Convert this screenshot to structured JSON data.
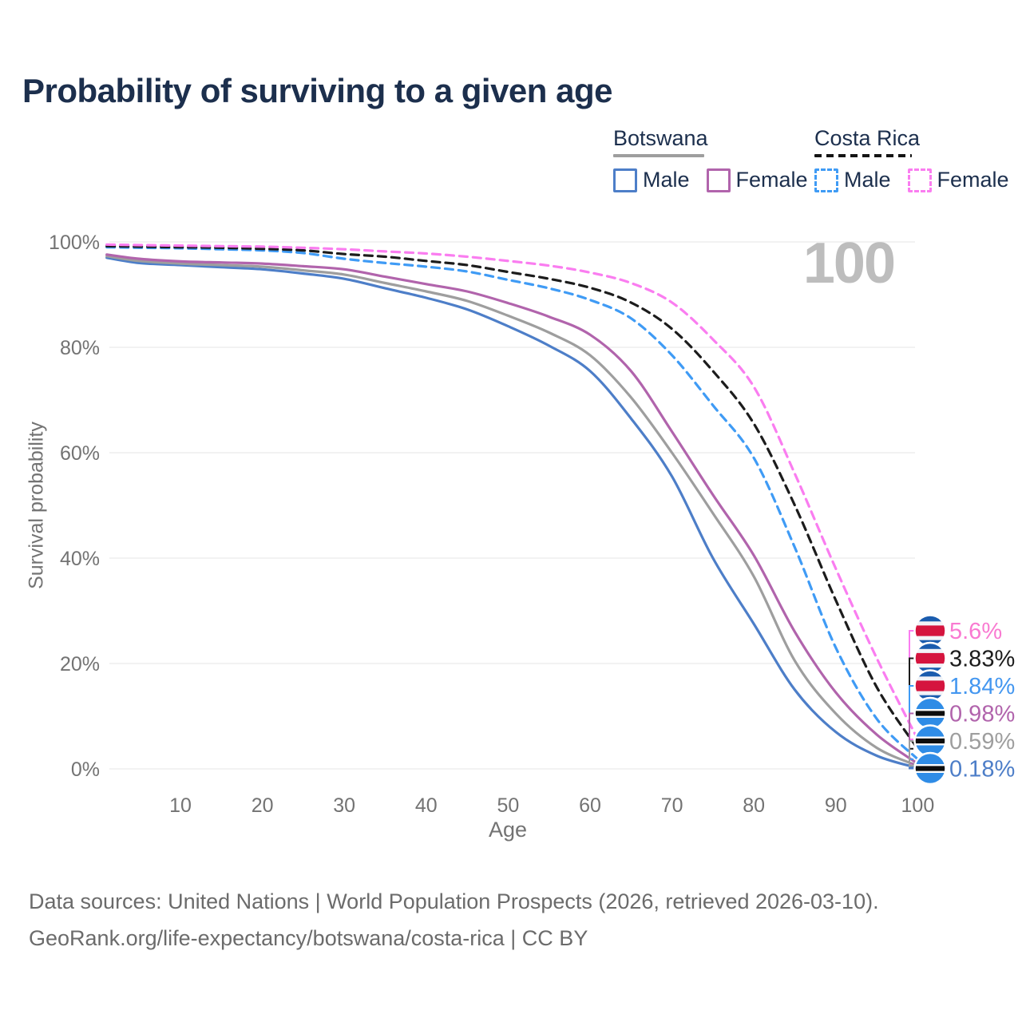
{
  "page": {
    "title": "Probability of surviving to a given age"
  },
  "watermark": "100",
  "legend": {
    "groups": [
      {
        "name": "Botswana",
        "line_style": "solid",
        "line_color": "#9e9e9e",
        "items": [
          {
            "label": "Male",
            "color": "#4d7ec8",
            "dashed": false
          },
          {
            "label": "Female",
            "color": "#b164ac",
            "dashed": false
          }
        ]
      },
      {
        "name": "Costa Rica",
        "line_style": "dashed",
        "line_color": "#141414",
        "items": [
          {
            "label": "Male",
            "color": "#3f9bf5",
            "dashed": true
          },
          {
            "label": "Female",
            "color": "#fa7df0",
            "dashed": true
          }
        ]
      }
    ]
  },
  "chart_data": {
    "type": "line",
    "title": "Probability of surviving to a given age",
    "xlabel": "Age",
    "ylabel": "Survival probability",
    "xlim": [
      1,
      100
    ],
    "ylim": [
      0,
      100
    ],
    "grid": "horizontal",
    "legend_position": "top-right",
    "x_ticks": [
      10,
      20,
      30,
      40,
      50,
      60,
      70,
      80,
      90,
      100
    ],
    "y_ticks": [
      {
        "value": 0,
        "label": "0%"
      },
      {
        "value": 20,
        "label": "20%"
      },
      {
        "value": 40,
        "label": "40%"
      },
      {
        "value": 60,
        "label": "60%"
      },
      {
        "value": 80,
        "label": "80%"
      },
      {
        "value": 100,
        "label": "100%"
      }
    ],
    "x": [
      1,
      5,
      10,
      15,
      20,
      25,
      30,
      35,
      40,
      45,
      50,
      55,
      60,
      65,
      70,
      75,
      80,
      85,
      90,
      95,
      100
    ],
    "series": [
      {
        "name": "Botswana Male",
        "country": "Botswana",
        "sex": "male",
        "color": "#4d7ec8",
        "label_color": "#4d7ec8",
        "dashed": false,
        "flag": "botswana",
        "end_label": "0.18%",
        "values": [
          97.0,
          96.0,
          95.6,
          95.2,
          94.8,
          94.0,
          93.0,
          91.2,
          89.4,
          87.2,
          84.0,
          80.3,
          75.5,
          66.5,
          55.5,
          40.0,
          27.5,
          15.0,
          7.0,
          2.5,
          0.18
        ]
      },
      {
        "name": "Botswana (both sexes)",
        "country": "Botswana",
        "sex": "total",
        "color": "#9e9e9e",
        "label_color": "#9e9e9e",
        "dashed": false,
        "flag": "botswana",
        "end_label": "0.59%",
        "values": [
          97.3,
          96.4,
          95.9,
          95.6,
          95.3,
          94.6,
          93.8,
          92.2,
          90.6,
          88.8,
          86.0,
          82.8,
          78.5,
          70.5,
          60.0,
          48.5,
          36.5,
          20.5,
          10.5,
          4.0,
          0.59
        ]
      },
      {
        "name": "Botswana Female",
        "country": "Botswana",
        "sex": "female",
        "color": "#b164ac",
        "label_color": "#b164ac",
        "dashed": false,
        "flag": "botswana",
        "end_label": "0.98%",
        "values": [
          97.6,
          96.8,
          96.3,
          96.1,
          95.9,
          95.4,
          94.8,
          93.4,
          92.0,
          90.6,
          88.4,
          85.8,
          82.4,
          75.5,
          64.0,
          52.0,
          40.5,
          26.0,
          14.5,
          6.5,
          0.98
        ]
      },
      {
        "name": "Costa Rica Male",
        "country": "Costa Rica",
        "sex": "male",
        "color": "#3f9bf5",
        "label_color": "#4497f0",
        "dashed": true,
        "flag": "costa-rica",
        "end_label": "1.84%",
        "values": [
          99.0,
          98.9,
          98.8,
          98.6,
          98.4,
          97.9,
          96.8,
          96.0,
          95.3,
          94.4,
          92.8,
          91.2,
          89.0,
          85.5,
          78.5,
          69.0,
          59.0,
          42.0,
          23.0,
          9.5,
          1.84
        ]
      },
      {
        "name": "Costa Rica (both sexes)",
        "country": "Costa Rica",
        "sex": "total",
        "color": "#1c1c1c",
        "label_color": "#1c1c1c",
        "dashed": true,
        "flag": "costa-rica",
        "end_label": "3.83%",
        "values": [
          99.2,
          99.1,
          99.0,
          98.9,
          98.7,
          98.4,
          97.7,
          97.2,
          96.4,
          95.6,
          94.3,
          93.0,
          91.3,
          88.5,
          83.5,
          75.5,
          65.5,
          50.0,
          32.0,
          15.5,
          3.83
        ]
      },
      {
        "name": "Costa Rica Female",
        "country": "Costa Rica",
        "sex": "female",
        "color": "#fa7df0",
        "label_color": "#f97ad1",
        "dashed": true,
        "flag": "costa-rica",
        "end_label": "5.6%",
        "values": [
          99.5,
          99.4,
          99.3,
          99.2,
          99.1,
          98.9,
          98.6,
          98.2,
          97.8,
          97.2,
          96.4,
          95.5,
          94.2,
          92.2,
          88.5,
          81.5,
          72.5,
          56.0,
          38.0,
          21.0,
          5.6
        ]
      }
    ]
  },
  "footer": {
    "line1": "Data sources: United Nations | World Population Prospects (2026, retrieved 2026-03-10).",
    "line2": "GeoRank.org/life-expectancy/botswana/costa-rica | CC BY"
  }
}
